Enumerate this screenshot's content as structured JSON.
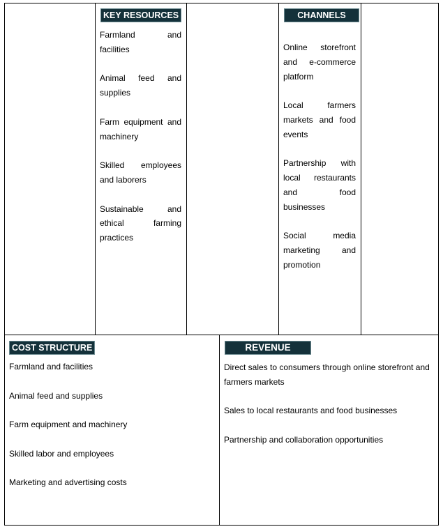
{
  "key_resources": {
    "title": "KEY RESOURCES",
    "items": [
      "Farmland and facilities",
      "Animal feed and supplies",
      "Farm equipment and machinery",
      "Skilled employees and laborers",
      "Sustainable and ethical farming practices"
    ]
  },
  "channels": {
    "title": "CHANNELS",
    "items": [
      "Online storefront and e-commerce platform",
      "Local farmers markets and food events",
      "Partnership with local restaurants and food businesses",
      "Social media marketing and promotion"
    ]
  },
  "cost_structure": {
    "title": "COST STRUCTURE",
    "items": [
      "Farmland and facilities",
      "Animal feed and supplies",
      "Farm equipment and machinery",
      "Skilled labor and employees",
      "Marketing and advertising costs"
    ]
  },
  "revenue": {
    "title": "REVENUE",
    "items": [
      "Direct sales to consumers through online storefront and farmers markets",
      "Sales to local restaurants and food businesses",
      "Partnership and collaboration opportunities"
    ]
  },
  "colors": {
    "header_bg": "#14313a",
    "header_text": "#ffffff"
  }
}
